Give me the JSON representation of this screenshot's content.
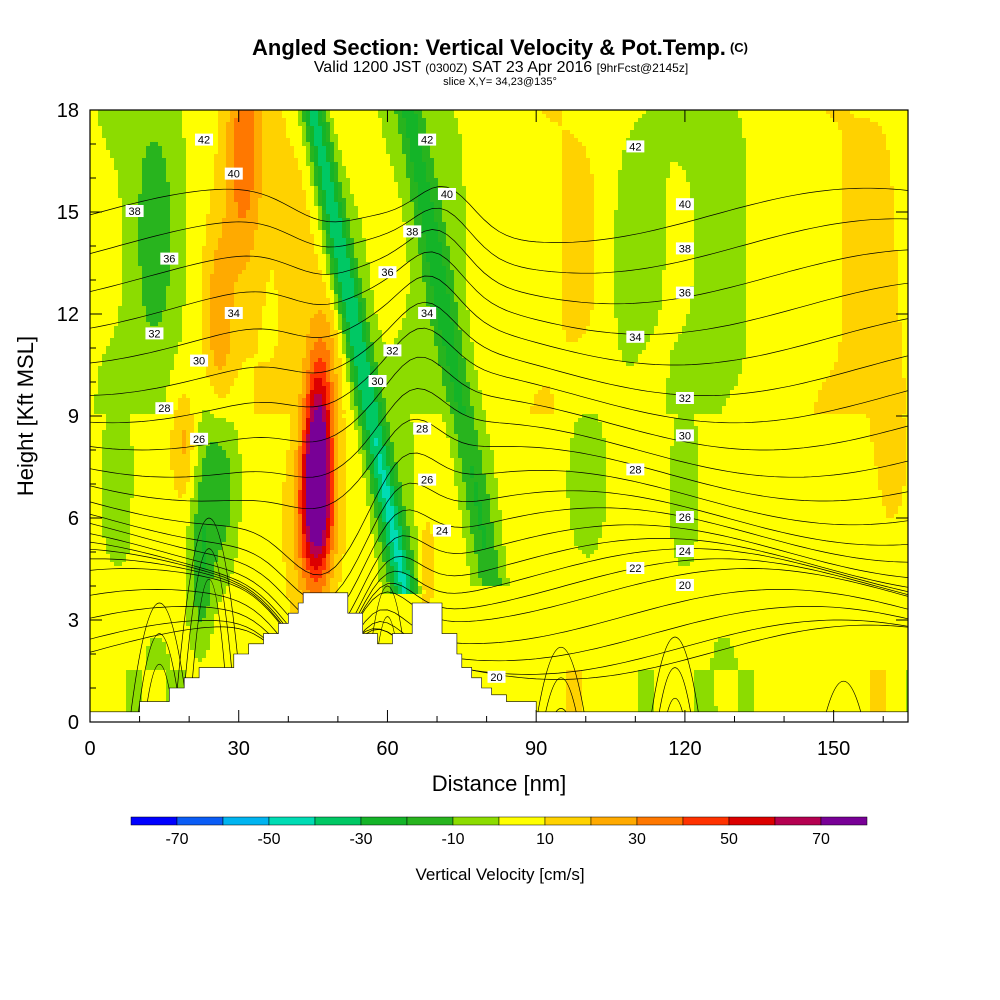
{
  "header": {
    "title": "Angled Section: Vertical Velocity & Pot.Temp.",
    "title_unit": "(C)",
    "valid_prefix": "Valid 1200 JST",
    "valid_utc": "(0300Z)",
    "valid_date": "SAT 23 Apr 2016",
    "valid_fcst": "[9hrFcst@2145z]",
    "slice": "slice X,Y= 34,23@135°"
  },
  "chart_data": {
    "type": "heatmap",
    "title": "Angled Section: Vertical Velocity & Pot.Temp.",
    "xlabel": "Distance [nm]",
    "ylabel": "Height [Kft MSL]",
    "xlim": [
      0,
      165
    ],
    "ylim": [
      0,
      18
    ],
    "x_ticks": [
      0,
      30,
      60,
      90,
      120,
      150
    ],
    "y_ticks": [
      0,
      3,
      6,
      9,
      12,
      15,
      18
    ],
    "grid": false,
    "colorbar": {
      "title": "Vertical Velocity [cm/s]",
      "levels": [
        -80,
        -70,
        -60,
        -50,
        -40,
        -30,
        -20,
        -10,
        0,
        10,
        20,
        30,
        40,
        50,
        60,
        70,
        80
      ],
      "tick_labels": [
        -70,
        -50,
        -30,
        -10,
        10,
        30,
        50,
        70
      ],
      "colors": [
        "#0000ff",
        "#0a5cf5",
        "#00b4f0",
        "#00dcb4",
        "#00c864",
        "#14b428",
        "#28b41e",
        "#8cdc00",
        "#ffff00",
        "#ffd200",
        "#ffaa00",
        "#ff7800",
        "#ff3200",
        "#dc0000",
        "#b40050",
        "#780096"
      ]
    },
    "features": [
      {
        "name": "updraft core",
        "x_nm": 46,
        "height_kft": [
          3.8,
          10.5
        ],
        "max_cm_s": 75
      },
      {
        "name": "downdraft band",
        "x_nm": [
          43,
          62
        ],
        "height_kft": [
          3.8,
          18
        ],
        "min_cm_s": -45
      },
      {
        "name": "upper updraft",
        "x_nm": [
          28,
          40
        ],
        "height_kft": [
          12,
          18
        ],
        "max_cm_s": 35
      }
    ],
    "terrain": [
      {
        "x": 0,
        "h": 0.3
      },
      {
        "x": 10,
        "h": 0.3
      },
      {
        "x": 10,
        "h": 0.6
      },
      {
        "x": 16,
        "h": 0.6
      },
      {
        "x": 16,
        "h": 1.0
      },
      {
        "x": 19,
        "h": 1.0
      },
      {
        "x": 19,
        "h": 1.3
      },
      {
        "x": 22,
        "h": 1.3
      },
      {
        "x": 22,
        "h": 1.6
      },
      {
        "x": 29,
        "h": 1.6
      },
      {
        "x": 29,
        "h": 2.0
      },
      {
        "x": 32,
        "h": 2.0
      },
      {
        "x": 32,
        "h": 2.3
      },
      {
        "x": 35,
        "h": 2.3
      },
      {
        "x": 35,
        "h": 2.6
      },
      {
        "x": 38,
        "h": 2.6
      },
      {
        "x": 38,
        "h": 2.9
      },
      {
        "x": 40,
        "h": 2.9
      },
      {
        "x": 40,
        "h": 3.2
      },
      {
        "x": 42,
        "h": 3.2
      },
      {
        "x": 42,
        "h": 3.5
      },
      {
        "x": 43,
        "h": 3.5
      },
      {
        "x": 43,
        "h": 3.8
      },
      {
        "x": 52,
        "h": 3.8
      },
      {
        "x": 52,
        "h": 3.2
      },
      {
        "x": 55,
        "h": 3.2
      },
      {
        "x": 55,
        "h": 2.6
      },
      {
        "x": 58,
        "h": 2.6
      },
      {
        "x": 58,
        "h": 2.3
      },
      {
        "x": 61,
        "h": 2.3
      },
      {
        "x": 61,
        "h": 2.6
      },
      {
        "x": 65,
        "h": 2.6
      },
      {
        "x": 65,
        "h": 3.5
      },
      {
        "x": 71,
        "h": 3.5
      },
      {
        "x": 71,
        "h": 2.6
      },
      {
        "x": 74,
        "h": 2.6
      },
      {
        "x": 74,
        "h": 2.0
      },
      {
        "x": 75,
        "h": 2.0
      },
      {
        "x": 75,
        "h": 1.6
      },
      {
        "x": 77,
        "h": 1.6
      },
      {
        "x": 77,
        "h": 1.3
      },
      {
        "x": 79,
        "h": 1.3
      },
      {
        "x": 79,
        "h": 1.0
      },
      {
        "x": 81,
        "h": 1.0
      },
      {
        "x": 81,
        "h": 0.8
      },
      {
        "x": 84,
        "h": 0.8
      },
      {
        "x": 84,
        "h": 0.6
      },
      {
        "x": 90,
        "h": 0.6
      },
      {
        "x": 90,
        "h": 0.3
      },
      {
        "x": 165,
        "h": 0.3
      }
    ],
    "contour_labels": [
      {
        "text": "42",
        "x": 23,
        "h": 17.1
      },
      {
        "text": "40",
        "x": 29,
        "h": 16.1
      },
      {
        "text": "38",
        "x": 9,
        "h": 15.0
      },
      {
        "text": "36",
        "x": 16,
        "h": 13.6
      },
      {
        "text": "34",
        "x": 29,
        "h": 12.0
      },
      {
        "text": "32",
        "x": 13,
        "h": 11.4
      },
      {
        "text": "30",
        "x": 22,
        "h": 10.6
      },
      {
        "text": "28",
        "x": 15,
        "h": 9.2
      },
      {
        "text": "26",
        "x": 22,
        "h": 8.3
      },
      {
        "text": "42",
        "x": 68,
        "h": 17.1
      },
      {
        "text": "40",
        "x": 72,
        "h": 15.5
      },
      {
        "text": "38",
        "x": 65,
        "h": 14.4
      },
      {
        "text": "36",
        "x": 60,
        "h": 13.2
      },
      {
        "text": "34",
        "x": 68,
        "h": 12.0
      },
      {
        "text": "32",
        "x": 61,
        "h": 10.9
      },
      {
        "text": "30",
        "x": 58,
        "h": 10.0
      },
      {
        "text": "28",
        "x": 67,
        "h": 8.6
      },
      {
        "text": "26",
        "x": 68,
        "h": 7.1
      },
      {
        "text": "24",
        "x": 71,
        "h": 5.6
      },
      {
        "text": "20",
        "x": 82,
        "h": 1.3
      },
      {
        "text": "42",
        "x": 110,
        "h": 16.9
      },
      {
        "text": "40",
        "x": 120,
        "h": 15.2
      },
      {
        "text": "38",
        "x": 120,
        "h": 13.9
      },
      {
        "text": "36",
        "x": 120,
        "h": 12.6
      },
      {
        "text": "34",
        "x": 110,
        "h": 11.3
      },
      {
        "text": "32",
        "x": 120,
        "h": 9.5
      },
      {
        "text": "30",
        "x": 120,
        "h": 8.4
      },
      {
        "text": "28",
        "x": 110,
        "h": 7.4
      },
      {
        "text": "26",
        "x": 120,
        "h": 6.0
      },
      {
        "text": "24",
        "x": 120,
        "h": 5.0
      },
      {
        "text": "22",
        "x": 110,
        "h": 4.5
      },
      {
        "text": "20",
        "x": 120,
        "h": 4.0
      }
    ]
  }
}
